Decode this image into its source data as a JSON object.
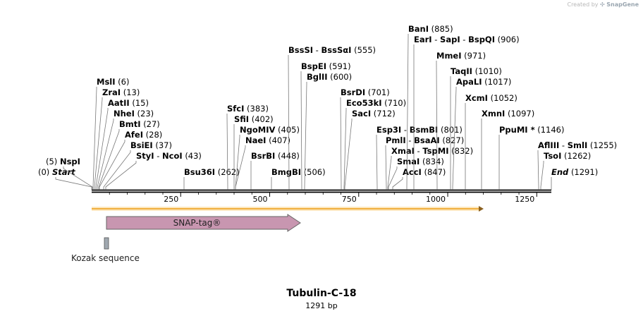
{
  "credit": {
    "prefix": "Created by",
    "brand": "SnapGene"
  },
  "map": {
    "name": "Tubulin-C-18",
    "length_label": "1291 bp",
    "length": 1291
  },
  "ruler": {
    "ticks": [
      "250",
      "500",
      "750",
      "1000",
      "1250"
    ]
  },
  "features": {
    "snap_tag": {
      "label": "SNAP-tag®",
      "start": 45,
      "end": 631,
      "color": "#c896b0"
    },
    "kozak": {
      "label": "Kozak sequence",
      "start": 36,
      "end": 45,
      "color": "#a0a8b0"
    },
    "orf_color": "#f0b040"
  },
  "sites": [
    {
      "name": "Start",
      "pos": "(0)",
      "italic": true
    },
    {
      "name": "NspI",
      "pos": "(5)"
    },
    {
      "name": "MslI",
      "pos": "(6)"
    },
    {
      "name": "ZraI",
      "pos": "(13)"
    },
    {
      "name": "AatII",
      "pos": "(15)"
    },
    {
      "name": "NheI",
      "pos": "(23)"
    },
    {
      "name": "BmtI",
      "pos": "(27)"
    },
    {
      "name": "AfeI",
      "pos": "(28)"
    },
    {
      "name": "BsiEI",
      "pos": "(37)"
    },
    {
      "name": "StyI",
      "name2": "NcoI",
      "pos": "(43)"
    },
    {
      "name": "Bsu36I",
      "pos": "(262)"
    },
    {
      "name": "SfcI",
      "pos": "(383)"
    },
    {
      "name": "SfiI",
      "pos": "(402)"
    },
    {
      "name": "NgoMIV",
      "pos": "(405)"
    },
    {
      "name": "NaeI",
      "pos": "(407)"
    },
    {
      "name": "BsrBI",
      "pos": "(448)"
    },
    {
      "name": "BmgBI",
      "pos": "(506)"
    },
    {
      "name": "BssSI",
      "name2": "BssSαI",
      "pos": "(555)"
    },
    {
      "name": "BspEI",
      "pos": "(591)"
    },
    {
      "name": "BglII",
      "pos": "(600)"
    },
    {
      "name": "BsrDI",
      "pos": "(701)"
    },
    {
      "name": "Eco53kI",
      "pos": "(710)"
    },
    {
      "name": "SacI",
      "pos": "(712)"
    },
    {
      "name": "Esp3I",
      "name2": "BsmBI",
      "pos": "(801)"
    },
    {
      "name": "PmlI",
      "name2": "BsaAI",
      "pos": "(827)"
    },
    {
      "name": "XmaI",
      "name2": "TspMI",
      "pos": "(832)"
    },
    {
      "name": "SmaI",
      "pos": "(834)"
    },
    {
      "name": "AccI",
      "pos": "(847)"
    },
    {
      "name": "BanI",
      "pos": "(885)"
    },
    {
      "name": "EarI",
      "name2": "SapI",
      "name3": "BspQI",
      "pos": "(906)"
    },
    {
      "name": "MmeI",
      "pos": "(971)"
    },
    {
      "name": "TaqII",
      "pos": "(1010)"
    },
    {
      "name": "ApaLI",
      "pos": "(1017)"
    },
    {
      "name": "XcmI",
      "pos": "(1052)"
    },
    {
      "name": "XmnI",
      "pos": "(1097)"
    },
    {
      "name": "PpuMI *",
      "pos": "(1146)"
    },
    {
      "name": "AflIII",
      "name2": "SmlI",
      "pos": "(1255)"
    },
    {
      "name": "TsoI",
      "pos": "(1262)"
    },
    {
      "name": "End",
      "pos": "(1291)",
      "italic": true
    }
  ]
}
